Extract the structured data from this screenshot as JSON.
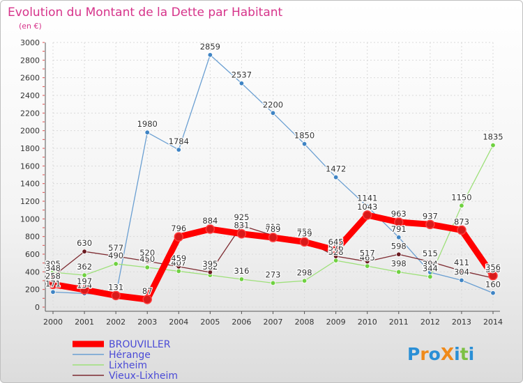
{
  "chart_data": {
    "type": "line",
    "title": "Evolution du Montant de la Dette par Habitant",
    "subtitle": "(en €)",
    "categories": [
      "2000",
      "2001",
      "2002",
      "2003",
      "2004",
      "2005",
      "2006",
      "2007",
      "2008",
      "2009",
      "2010",
      "2011",
      "2012",
      "2013",
      "2014"
    ],
    "ylim": [
      0,
      3000
    ],
    "yticks": [
      0,
      200,
      400,
      600,
      800,
      1000,
      1200,
      1400,
      1600,
      1800,
      2000,
      2200,
      2400,
      2600,
      2800,
      3000
    ],
    "series": [
      {
        "name": "Hérange",
        "color": "#6a9fd2",
        "marker": "#3f84c4",
        "values": [
          171,
          154,
          132,
          1980,
          1784,
          2859,
          2537,
          2200,
          1850,
          1472,
          1141,
          791,
          394,
          304,
          160
        ]
      },
      {
        "name": "Lixheim",
        "color": "#9ee07a",
        "marker": "#6fd140",
        "values": [
          395,
          362,
          490,
          450,
          407,
          362,
          316,
          273,
          298,
          528,
          465,
          398,
          344,
          1150,
          1835
        ]
      },
      {
        "name": "Vieux-Lixheim",
        "color": "#7d2a30",
        "marker": "#6a1c22",
        "values": [
          348,
          630,
          577,
          520,
          459,
          395,
          925,
          813,
          759,
          576,
          517,
          598,
          515,
          411,
          330
        ]
      },
      {
        "name": "BROUVILLER",
        "color": "#ff0000",
        "marker": "#d91a1a",
        "values": [
          258,
          197,
          131,
          87,
          796,
          884,
          831,
          789,
          739,
          645,
          1043,
          963,
          937,
          873,
          356
        ]
      }
    ],
    "legend": [
      "BROUVILLER",
      "Hérange",
      "Lixheim",
      "Vieux-Lixheim"
    ],
    "legend_position": "bottom-left"
  },
  "logo": {
    "text": "ProXiti"
  },
  "colors": {
    "title": "#d6338a",
    "axis": "#333333",
    "legend_text": "#4a4ad6"
  }
}
